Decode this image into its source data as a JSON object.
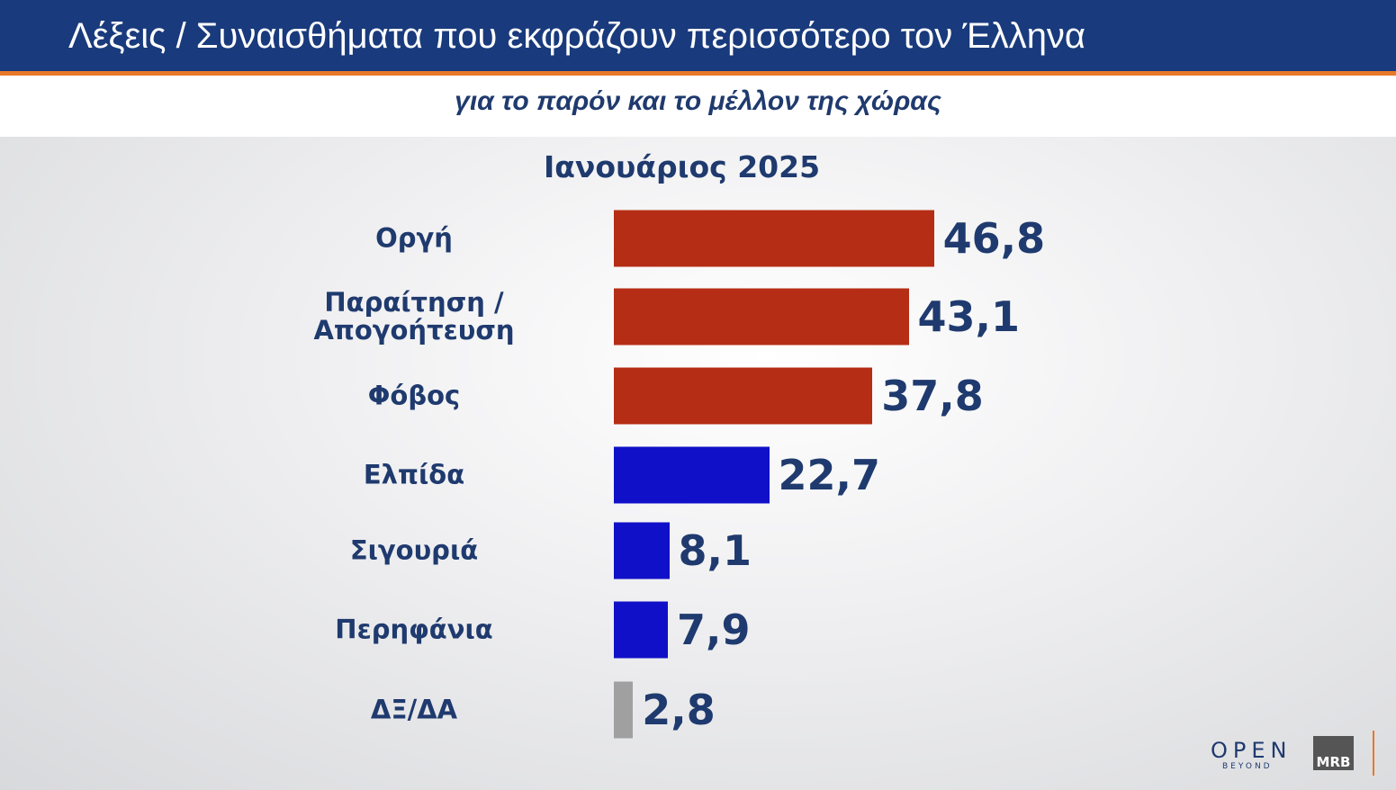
{
  "header": {
    "title": "Λέξεις / Συναισθήματα που εκφράζουν περισσότερο τον Έλληνα",
    "subtitle": "για το παρόν και το μέλλον της χώρας"
  },
  "chart_data": {
    "type": "bar",
    "orientation": "horizontal",
    "title": "Ιανουάριος 2025",
    "categories": [
      "Οργή",
      "Παραίτηση / Απογοήτευση",
      "Φόβος",
      "Ελπίδα",
      "Σιγουριά",
      "Περηφάνια",
      "ΔΞ/ΔΑ"
    ],
    "values": [
      46.8,
      43.1,
      37.8,
      22.7,
      8.1,
      7.9,
      2.8
    ],
    "value_labels": [
      "46,8",
      "43,1",
      "37,8",
      "22,7",
      "8,1",
      "7,9",
      "2,8"
    ],
    "colors": [
      "#b52d14",
      "#b52d14",
      "#b52d14",
      "#1010c8",
      "#1010c8",
      "#1010c8",
      "#a0a0a0"
    ]
  },
  "logos": {
    "open": "OPEN",
    "open_sub": "BEYOND",
    "mrb": "MRB"
  }
}
